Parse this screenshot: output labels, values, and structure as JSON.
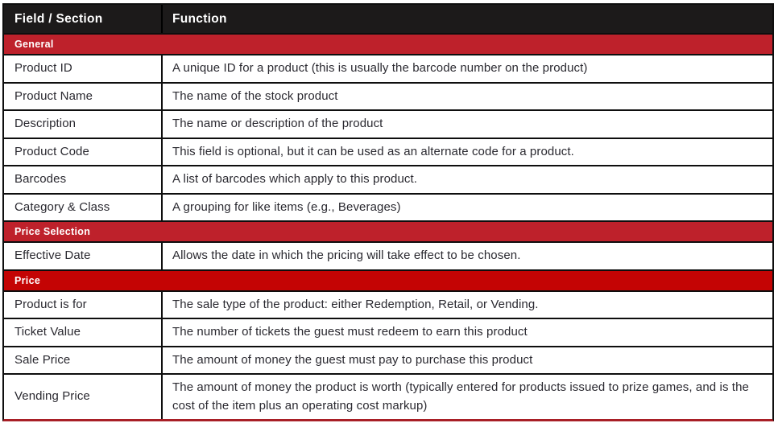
{
  "table": {
    "header": {
      "col_field": "Field / Section",
      "col_function": "Function"
    },
    "sections": {
      "general": "General",
      "price_selection": "Price Selection",
      "price": "Price"
    },
    "rows": [
      {
        "field": "Product ID",
        "function": "A unique ID for a product (this is usually the barcode number on the product)"
      },
      {
        "field": "Product Name",
        "function": "The name of the stock product"
      },
      {
        "field": "Description",
        "function": "The name or description of the product"
      },
      {
        "field": "Product Code",
        "function": "This field is optional, but it can be used as an alternate code for a product."
      },
      {
        "field": "Barcodes",
        "function": "A list of barcodes which apply to this product."
      },
      {
        "field": "Category & Class",
        "function": "A grouping for like items (e.g., Beverages)"
      },
      {
        "field": "Effective Date",
        "function": "Allows the date in which the pricing will take effect to be chosen."
      },
      {
        "field": "Product is for",
        "function": "The sale type of the product: either Redemption, Retail, or Vending."
      },
      {
        "field": "Ticket Value",
        "function": "The number of tickets the guest must redeem to earn this product"
      },
      {
        "field": "Sale Price",
        "function": "The amount of money the guest must pay to purchase this product"
      },
      {
        "field": "Vending Price",
        "function": "The amount of money the product is worth (typically entered for products issued to prize games, and is the cost of the item plus an operating cost markup)"
      }
    ],
    "colors": {
      "header_background": "#1c1a1a",
      "section_crimson": "#be212b",
      "section_dark_red": "#c40404",
      "grid_border": "#0e0e0e",
      "bottom_accent": "#a81f26",
      "body_text": "#2a2930",
      "header_text": "#ffffff"
    }
  }
}
